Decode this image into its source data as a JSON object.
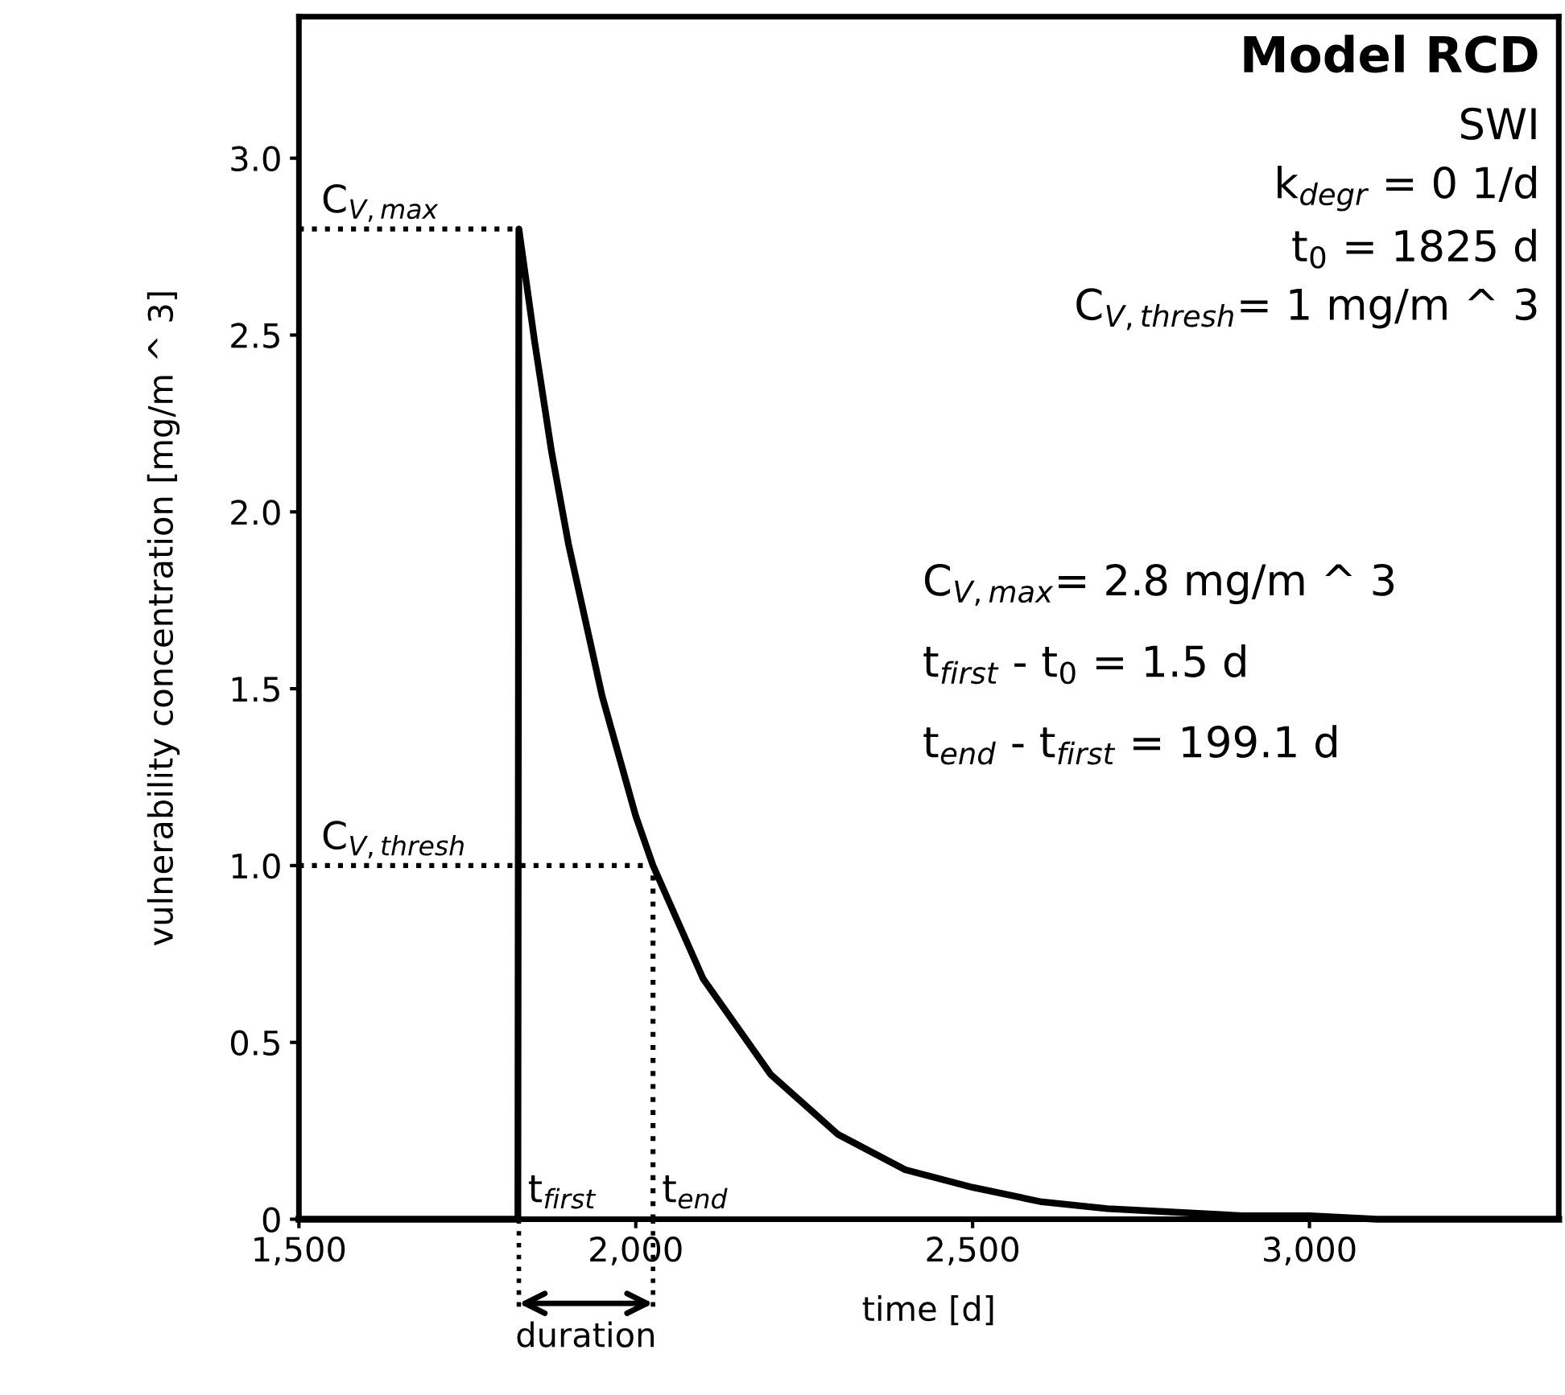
{
  "chart_data": {
    "type": "line",
    "title": "Model RCD",
    "subtitle": "SWI\nk$_{degr}$ = 0 1/d\nt$_{0}$ = 1825 d\nC$_{V,thresh}$= 1 mg/m ^ 3",
    "xlabel": "time [d]",
    "ylabel": "vulnerability concentration [mg/m ^ 3]",
    "series": [
      {
        "color": "#000000",
        "line_style": "solid",
        "x": [
          1500,
          1825,
          1826.5,
          1850,
          1875,
          1900,
          1950,
          2000,
          2025.6,
          2100,
          2200,
          2300,
          2400,
          2500,
          2600,
          2700,
          2800,
          2900,
          3000,
          3100,
          3370
        ],
        "values": [
          0,
          0,
          2.8,
          2.48,
          2.17,
          1.91,
          1.48,
          1.14,
          1.0,
          0.68,
          0.41,
          0.24,
          0.14,
          0.09,
          0.05,
          0.03,
          0.02,
          0.01,
          0.01,
          0,
          0
        ]
      },
      {
        "color": "#000000",
        "line_style": "dotted",
        "x": [
          1500,
          1826.5
        ],
        "values": [
          2.8,
          2.8
        ]
      },
      {
        "color": "#000000",
        "line_style": "dotted",
        "x": [
          1500,
          2025.6
        ],
        "values": [
          1.0,
          1.0
        ]
      },
      {
        "color": "#000000",
        "line_style": "dotted",
        "x": [
          2025.6,
          2025.6
        ],
        "values": [
          0,
          1.0
        ]
      }
    ],
    "annotations": [
      {
        "text": "C$_{V,max}$",
        "x": 1500,
        "y": 2.8
      },
      {
        "text": "C$_{V,thresh}$",
        "x": 1500,
        "y": 1.0
      },
      {
        "text": "t$_{first}$",
        "x": 1826.5,
        "y": 0
      },
      {
        "text": "t$_{end}$",
        "x": 2025.6,
        "y": 0
      },
      "duration",
      "C$_{V,max}$= 2.8 mg/m ^ 3",
      "t$_{first}$ - t$_{0}$ = 1.5 d",
      "t$_{end}$ - t$_{first}$ = 199.1 d"
    ],
    "xlim": [
      1500,
      3370
    ],
    "ylim": [
      0,
      3.4
    ],
    "xticks": [
      {
        "value": 1500,
        "label": "1,500"
      },
      {
        "value": 2000,
        "label": "2,000"
      },
      {
        "value": 2500,
        "label": "2,500"
      },
      {
        "value": 3000,
        "label": "3,000"
      }
    ],
    "yticks": [
      0,
      {
        "value": 0.5,
        "label": "0.5"
      },
      {
        "value": 1,
        "label": "1.0"
      },
      {
        "value": 1.5,
        "label": "1.5"
      },
      {
        "value": 2,
        "label": "2.0"
      },
      {
        "value": 2.5,
        "label": "2.5"
      },
      {
        "value": 3,
        "label": "3.0"
      }
    ],
    "grid": false
  }
}
